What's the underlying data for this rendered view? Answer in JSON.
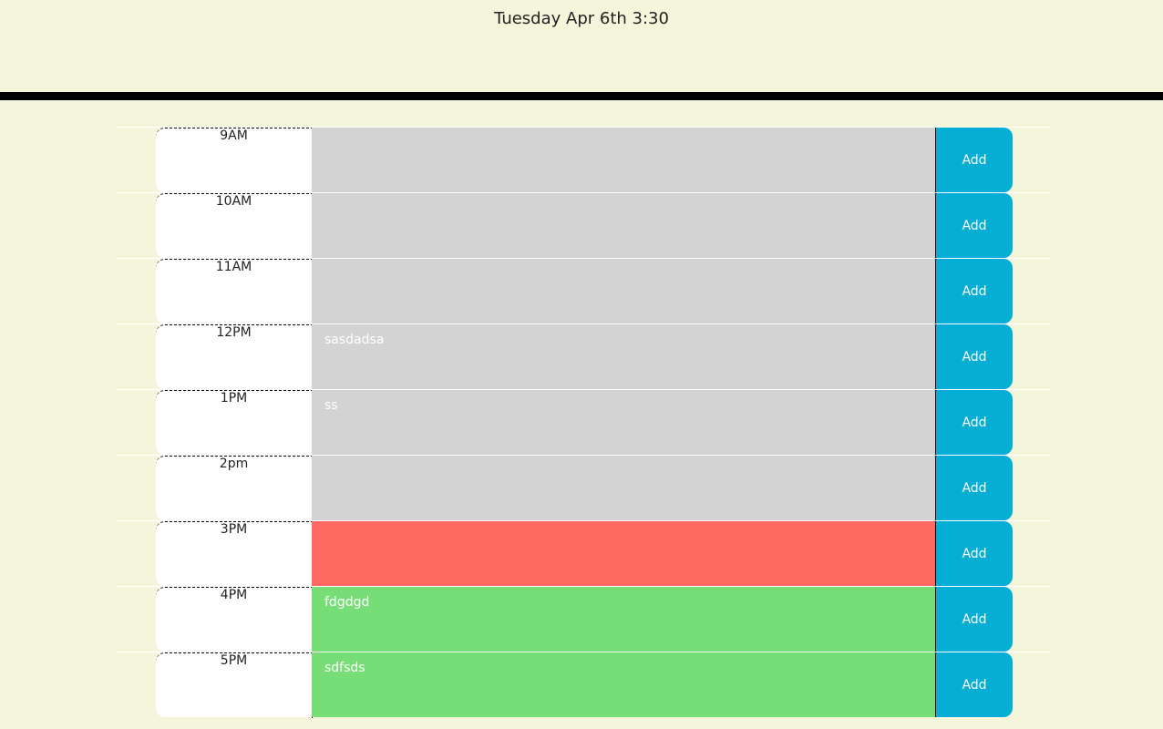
{
  "header": {
    "current_date": "Tuesday Apr 6th 3:30"
  },
  "colors": {
    "background": "#f5f5dc",
    "past": "#d3d3d3",
    "present": "#ff6961",
    "future": "#77dd77",
    "button": "#06aed5"
  },
  "icons": [],
  "schedule": {
    "rows": [
      {
        "hour": "9AM",
        "task": "",
        "state": "past",
        "button": "Add"
      },
      {
        "hour": "10AM",
        "task": "",
        "state": "past",
        "button": "Add"
      },
      {
        "hour": "11AM",
        "task": "",
        "state": "past",
        "button": "Add"
      },
      {
        "hour": "12PM",
        "task": "sasdadsa",
        "state": "past",
        "button": "Add"
      },
      {
        "hour": "1PM",
        "task": "ss",
        "state": "past",
        "button": "Add"
      },
      {
        "hour": "2pm",
        "task": "",
        "state": "past",
        "button": "Add"
      },
      {
        "hour": "3PM",
        "task": "",
        "state": "present",
        "button": "Add"
      },
      {
        "hour": "4PM",
        "task": "fdgdgd",
        "state": "future",
        "button": "Add"
      },
      {
        "hour": "5PM",
        "task": "sdfsds",
        "state": "future",
        "button": "Add"
      }
    ]
  }
}
